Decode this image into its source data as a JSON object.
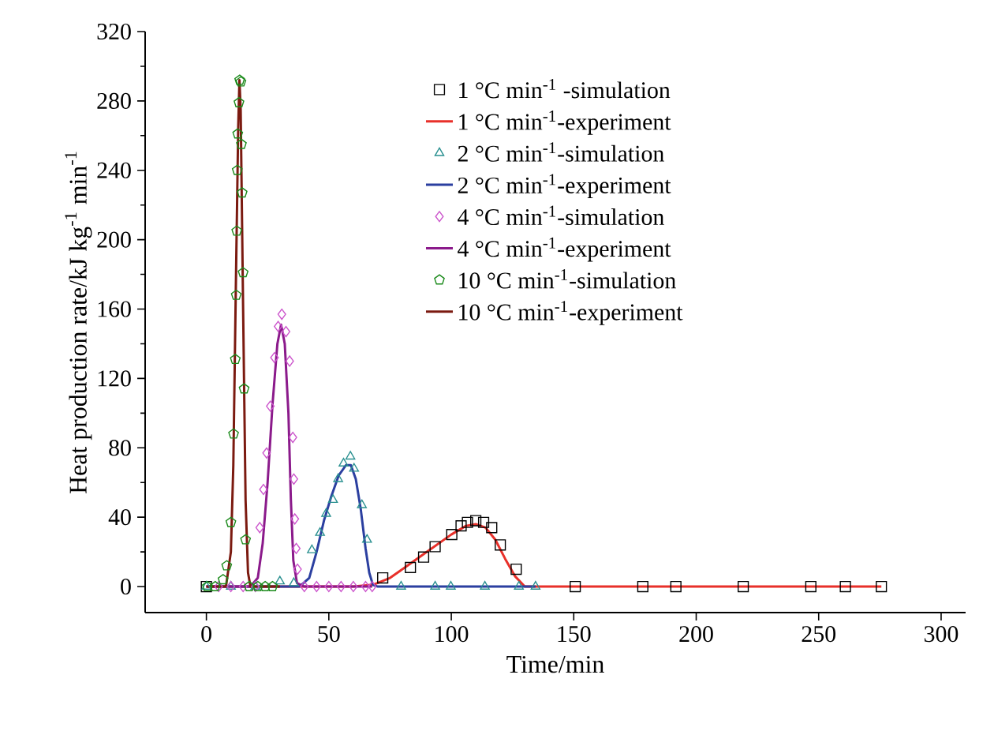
{
  "chart_data": {
    "type": "line",
    "xlabel": "Time/min",
    "ylabel": "Heat production rate/kJ kg$^{-1}$ min$^{-1}$",
    "xlim": [
      -25,
      310
    ],
    "ylim": [
      -15,
      320
    ],
    "xticks": [
      0,
      50,
      100,
      150,
      200,
      250,
      300
    ],
    "yticks": [
      0,
      40,
      80,
      120,
      160,
      200,
      240,
      280,
      320
    ],
    "grid": false,
    "legend": "top",
    "series": [
      {
        "name": "1 °C min$^{-1}$ -simulation",
        "type": "scatter",
        "marker": "square",
        "color": "#000000",
        "x": [
          0,
          72,
          83.3,
          88.7,
          93.4,
          100.2,
          104,
          106.6,
          110,
          113.2,
          116.5,
          120,
          126.5,
          150.6,
          178.2,
          191.7,
          219.2,
          246.8,
          260.9,
          275.6
        ],
        "values": [
          0,
          5,
          11,
          17,
          23,
          30,
          35,
          37,
          38,
          37,
          34,
          24,
          10,
          0,
          0,
          0,
          0,
          0,
          0,
          0
        ]
      },
      {
        "name": "1 °C min$^{-1}$-experiment",
        "color": "#e8302a",
        "x": [
          0,
          60,
          68,
          75,
          82,
          88,
          94,
          100,
          106,
          110,
          114,
          118,
          122,
          126,
          130,
          275.6
        ],
        "values": [
          0,
          0,
          1,
          5,
          12,
          18,
          24,
          30,
          35,
          36,
          34,
          27,
          16,
          6,
          0,
          0
        ]
      },
      {
        "name": "2 °C min$^{-1}$-simulation",
        "type": "scatter",
        "marker": "triangle",
        "color": "#2a9090",
        "x": [
          0,
          10,
          20,
          30,
          35.7,
          43.1,
          46.4,
          48.9,
          51.7,
          53.8,
          56,
          58.8,
          60.3,
          63.5,
          65.6,
          79.5,
          93.4,
          99.8,
          113.7,
          127.6,
          134.4
        ],
        "values": [
          0,
          0,
          0,
          3,
          2,
          21,
          31,
          42,
          50,
          62,
          71,
          75,
          68,
          47,
          27,
          0,
          0,
          0,
          0,
          0,
          0
        ]
      },
      {
        "name": "2 °C min$^{-1}$-experiment",
        "color": "#2b3fa0",
        "x": [
          0,
          38,
          42,
          45,
          48,
          51,
          54,
          57,
          59,
          61,
          63,
          65,
          66.5,
          68,
          70,
          134.4
        ],
        "values": [
          0,
          0,
          5,
          20,
          38,
          52,
          64,
          70,
          70,
          62,
          45,
          22,
          8,
          1,
          0,
          0
        ]
      },
      {
        "name": "4 °C min$^{-1}$-simulation",
        "type": "scatter",
        "marker": "diamond",
        "color": "#cc55cc",
        "x": [
          5,
          10,
          15,
          20,
          21.8,
          23.3,
          24.6,
          26.1,
          27.8,
          29.3,
          30.8,
          32.5,
          34,
          35.3,
          35.7,
          36.1,
          36.7,
          37.2,
          40,
          45,
          50,
          55,
          60,
          65,
          67.7
        ],
        "values": [
          0,
          0,
          0,
          0,
          34,
          56,
          77,
          104,
          132,
          150,
          157,
          147,
          130,
          86,
          62,
          39,
          22,
          10,
          0,
          0,
          0,
          0,
          0,
          0,
          0
        ]
      },
      {
        "name": "4 °C min$^{-1}$-experiment",
        "color": "#8b1a8b",
        "x": [
          0,
          18,
          21,
          23,
          25,
          27,
          29,
          30.5,
          32,
          33.5,
          34.5,
          35.5,
          37,
          40,
          67.7
        ],
        "values": [
          0,
          0,
          5,
          25,
          60,
          105,
          140,
          151,
          140,
          100,
          50,
          15,
          2,
          0,
          0
        ]
      },
      {
        "name": "10 °C min$^{-1}$-simulation",
        "type": "scatter",
        "color": "#1a8a1a",
        "x": [
          0.4,
          3.6,
          6.8,
          8.3,
          10,
          11.1,
          11.8,
          12.2,
          12.4,
          12.6,
          12.8,
          13.3,
          13.6,
          14.1,
          14.3,
          14.6,
          15,
          15.4,
          16,
          17.5,
          21,
          24,
          27
        ],
        "values": [
          0,
          0,
          4,
          12,
          37,
          88,
          131,
          168,
          205,
          240,
          261,
          279,
          292,
          291,
          255,
          227,
          181,
          114,
          27,
          0,
          0,
          0,
          0
        ]
      },
      {
        "name": "10 °C min$^{-1}$-experiment",
        "color": "#7b1a10",
        "x": [
          0,
          8,
          10,
          11,
          12,
          13,
          13.5,
          14,
          15,
          16,
          17,
          18,
          30
        ],
        "values": [
          0,
          0,
          20,
          70,
          170,
          265,
          292,
          275,
          160,
          50,
          8,
          0,
          0
        ]
      }
    ]
  }
}
